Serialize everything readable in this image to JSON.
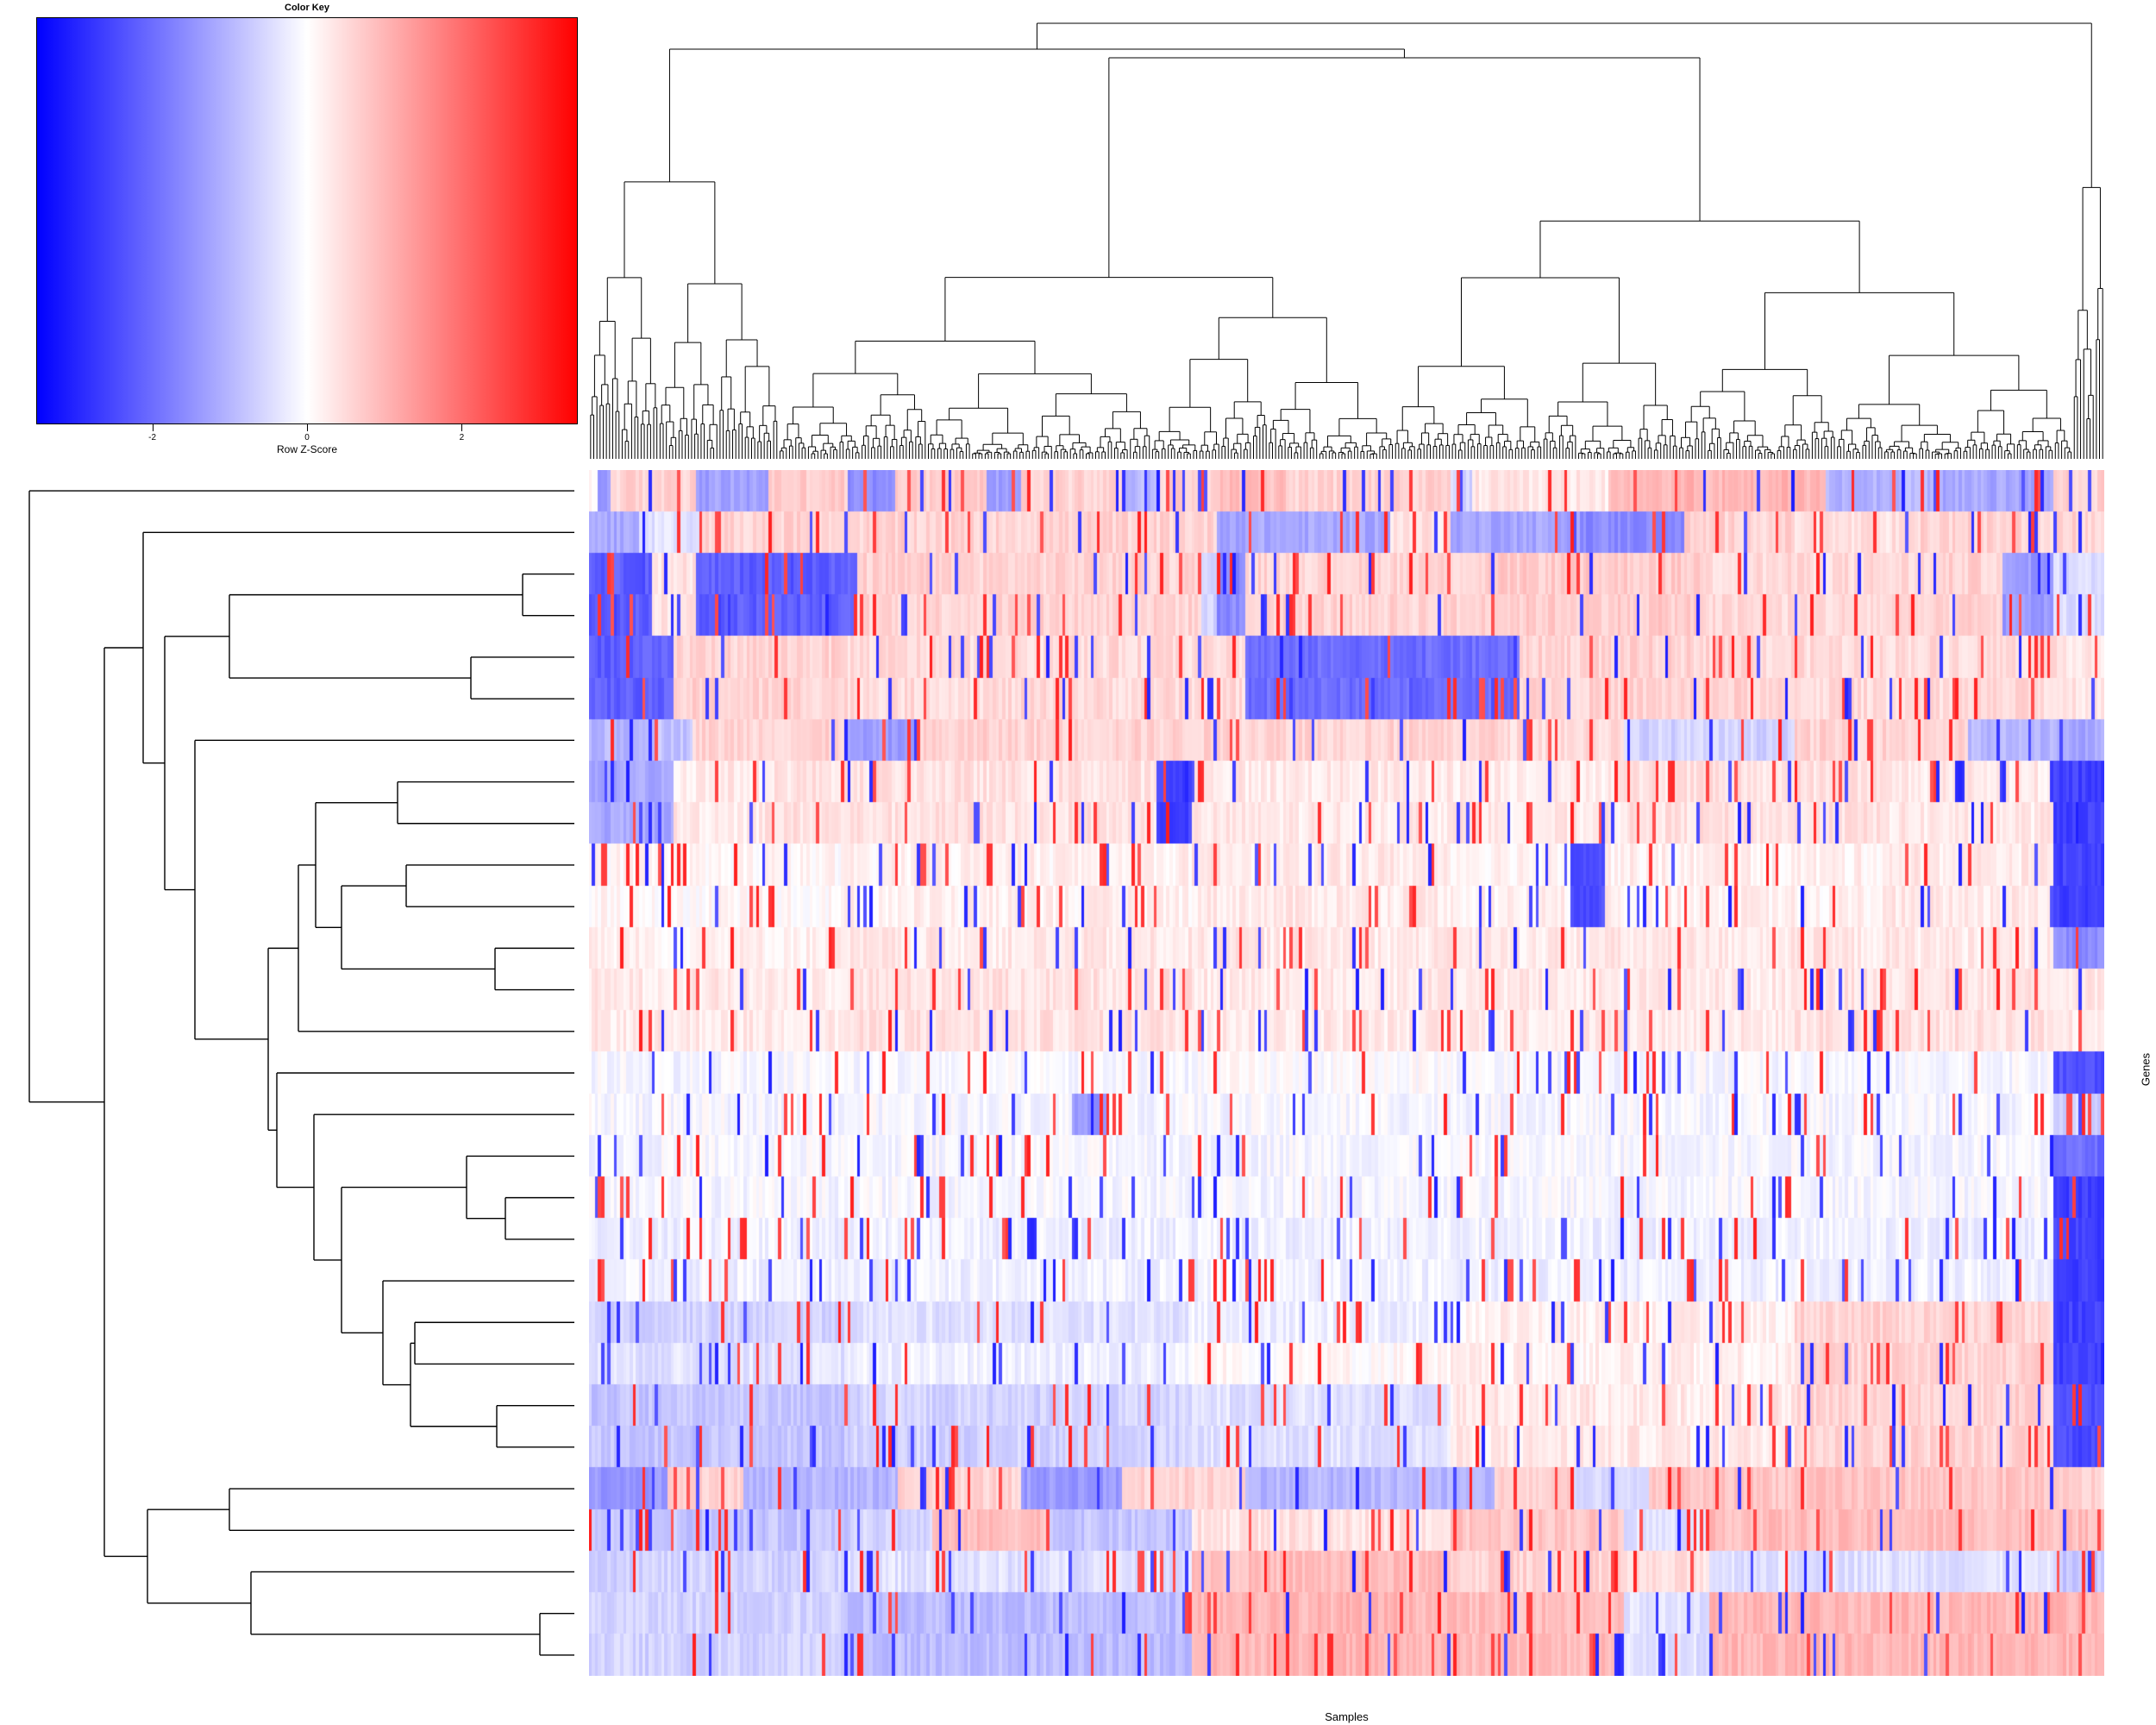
{
  "chart_data": {
    "type": "heatmap",
    "title": "",
    "color_key": {
      "title": "Color Key",
      "axis_label": "Row Z-Score",
      "range": [
        -3.5,
        3.5
      ],
      "ticks": [
        -2,
        0,
        2
      ],
      "tick_labels": [
        "-2",
        "0",
        "2"
      ],
      "colors": {
        "low": "#0000ff",
        "mid": "#ffffff",
        "high": "#ff0000"
      }
    },
    "xlabel": "Samples",
    "ylabel": "Genes",
    "n_rows": 29,
    "n_cols": 480,
    "row_dendrogram_order": [
      0,
      1,
      2,
      3,
      4,
      5,
      6,
      7,
      8,
      9,
      10,
      11,
      12,
      13,
      14,
      15,
      16,
      17,
      18,
      19,
      20,
      21,
      22,
      23,
      24,
      25,
      26,
      27,
      28
    ],
    "row_bands": [
      [
        [
          0,
          0.0
        ],
        [
          12,
          -1.4
        ],
        [
          25,
          0.6
        ],
        [
          60,
          0.6
        ],
        [
          125,
          -1.3
        ],
        [
          208,
          0.7
        ],
        [
          300,
          -1.6
        ],
        [
          355,
          0.7
        ],
        [
          462,
          -1.3
        ],
        [
          500,
          0.6
        ],
        [
          573,
          0.6
        ],
        [
          622,
          -0.9
        ],
        [
          660,
          0.6
        ],
        [
          720,
          0.9
        ],
        [
          810,
          0.6
        ],
        [
          1000,
          -0.6
        ],
        [
          1025,
          0.3
        ],
        [
          1183,
          1.0
        ],
        [
          1435,
          -1.0
        ],
        [
          1555,
          -1.2
        ],
        [
          1700,
          0.6
        ]
      ],
      [
        [
          0,
          -1.2
        ],
        [
          60,
          -0.4
        ],
        [
          130,
          0.6
        ],
        [
          415,
          0.6
        ],
        [
          730,
          -1.2
        ],
        [
          930,
          0.4
        ],
        [
          1000,
          -1.2
        ],
        [
          1150,
          -1.6
        ],
        [
          1270,
          0.6
        ],
        [
          1400,
          0.4
        ],
        [
          1545,
          0.6
        ],
        [
          1640,
          0.6
        ],
        [
          1700,
          0.6
        ]
      ],
      [
        [
          0,
          -2.2
        ],
        [
          75,
          0.4
        ],
        [
          125,
          -2.2
        ],
        [
          310,
          0.6
        ],
        [
          710,
          -0.6
        ],
        [
          730,
          -1.6
        ],
        [
          760,
          0.6
        ],
        [
          1040,
          0.7
        ],
        [
          1300,
          0.5
        ],
        [
          1570,
          0.6
        ],
        [
          1640,
          -1.4
        ],
        [
          1700,
          -0.5
        ]
      ],
      [
        [
          0,
          -2.2
        ],
        [
          75,
          0.4
        ],
        [
          125,
          -2.2
        ],
        [
          310,
          0.6
        ],
        [
          710,
          -0.6
        ],
        [
          730,
          -1.6
        ],
        [
          760,
          0.6
        ],
        [
          1040,
          0.7
        ],
        [
          1300,
          0.5
        ],
        [
          1570,
          0.6
        ],
        [
          1640,
          -1.4
        ],
        [
          1700,
          -0.5
        ]
      ],
      [
        [
          0,
          -2.2
        ],
        [
          100,
          0.6
        ],
        [
          300,
          0.5
        ],
        [
          700,
          0.5
        ],
        [
          760,
          -2.0
        ],
        [
          940,
          -2.0
        ],
        [
          1000,
          -2.0
        ],
        [
          1080,
          0.6
        ],
        [
          1360,
          0.5
        ],
        [
          1620,
          0.5
        ],
        [
          1690,
          0.4
        ]
      ],
      [
        [
          0,
          -2.2
        ],
        [
          100,
          0.6
        ],
        [
          300,
          0.5
        ],
        [
          700,
          0.5
        ],
        [
          760,
          -2.0
        ],
        [
          940,
          -2.0
        ],
        [
          1000,
          -2.0
        ],
        [
          1080,
          0.6
        ],
        [
          1360,
          0.5
        ],
        [
          1620,
          0.5
        ],
        [
          1690,
          0.4
        ]
      ],
      [
        [
          0,
          -1.0
        ],
        [
          60,
          -0.8
        ],
        [
          120,
          0.6
        ],
        [
          300,
          -1.4
        ],
        [
          380,
          0.6
        ],
        [
          730,
          0.6
        ],
        [
          1060,
          0.5
        ],
        [
          1200,
          -0.6
        ],
        [
          1400,
          0.6
        ],
        [
          1600,
          -1.0
        ],
        [
          1700,
          -1.2
        ]
      ],
      [
        [
          0,
          -1.2
        ],
        [
          100,
          0.3
        ],
        [
          200,
          0.4
        ],
        [
          660,
          -2.6
        ],
        [
          700,
          0.3
        ],
        [
          950,
          0.3
        ],
        [
          1200,
          0.4
        ],
        [
          1500,
          0.3
        ],
        [
          1700,
          -2.6
        ]
      ],
      [
        [
          0,
          -1.2
        ],
        [
          100,
          0.3
        ],
        [
          200,
          0.4
        ],
        [
          660,
          -2.6
        ],
        [
          700,
          0.3
        ],
        [
          950,
          0.3
        ],
        [
          1200,
          0.4
        ],
        [
          1500,
          0.3
        ],
        [
          1700,
          -2.6
        ]
      ],
      [
        [
          0,
          0.1
        ],
        [
          300,
          0.2
        ],
        [
          700,
          0.3
        ],
        [
          1000,
          0.2
        ],
        [
          1140,
          -2.4
        ],
        [
          1180,
          0.2
        ],
        [
          1500,
          0.3
        ],
        [
          1700,
          -2.6
        ]
      ],
      [
        [
          0,
          0.1
        ],
        [
          300,
          0.2
        ],
        [
          700,
          0.3
        ],
        [
          1000,
          0.2
        ],
        [
          1140,
          -2.4
        ],
        [
          1180,
          0.2
        ],
        [
          1500,
          0.3
        ],
        [
          1700,
          -2.6
        ]
      ],
      [
        [
          0,
          0.2
        ],
        [
          300,
          0.3
        ],
        [
          700,
          0.3
        ],
        [
          1000,
          0.3
        ],
        [
          1400,
          0.3
        ],
        [
          1700,
          -1.6
        ]
      ],
      [
        [
          0,
          0.3
        ],
        [
          300,
          0.4
        ],
        [
          700,
          0.3
        ],
        [
          1000,
          0.3
        ],
        [
          1400,
          0.4
        ],
        [
          1700,
          0.3
        ]
      ],
      [
        [
          0,
          0.3
        ],
        [
          300,
          0.4
        ],
        [
          700,
          0.3
        ],
        [
          1000,
          0.3
        ],
        [
          1400,
          0.4
        ],
        [
          1700,
          0.3
        ]
      ],
      [
        [
          0,
          -0.1
        ],
        [
          300,
          -0.1
        ],
        [
          700,
          0.0
        ],
        [
          1000,
          -0.1
        ],
        [
          1400,
          -0.1
        ],
        [
          1700,
          -2.4
        ]
      ],
      [
        [
          0,
          -0.1
        ],
        [
          300,
          -0.1
        ],
        [
          560,
          -1.4
        ],
        [
          600,
          -0.1
        ],
        [
          1000,
          -0.1
        ],
        [
          1400,
          -0.1
        ],
        [
          1700,
          -0.6
        ]
      ],
      [
        [
          0,
          -0.1
        ],
        [
          300,
          -0.1
        ],
        [
          600,
          -0.1
        ],
        [
          1000,
          -0.1
        ],
        [
          1400,
          -0.1
        ],
        [
          1700,
          -2.0
        ]
      ],
      [
        [
          0,
          -0.1
        ],
        [
          300,
          -0.1
        ],
        [
          700,
          -0.1
        ],
        [
          1000,
          -0.1
        ],
        [
          1400,
          -0.1
        ],
        [
          1700,
          -2.6
        ]
      ],
      [
        [
          0,
          -0.2
        ],
        [
          300,
          -0.2
        ],
        [
          700,
          -0.2
        ],
        [
          1000,
          -0.2
        ],
        [
          1400,
          -0.2
        ],
        [
          1700,
          -2.6
        ]
      ],
      [
        [
          0,
          -0.2
        ],
        [
          300,
          -0.2
        ],
        [
          700,
          -0.2
        ],
        [
          1000,
          -0.2
        ],
        [
          1400,
          -0.2
        ],
        [
          1700,
          -2.6
        ]
      ],
      [
        [
          0,
          -0.6
        ],
        [
          300,
          -0.4
        ],
        [
          700,
          -0.2
        ],
        [
          1000,
          0.2
        ],
        [
          1400,
          0.6
        ],
        [
          1700,
          -2.6
        ]
      ],
      [
        [
          0,
          -0.4
        ],
        [
          300,
          -0.2
        ],
        [
          700,
          0.1
        ],
        [
          1000,
          0.2
        ],
        [
          1400,
          0.6
        ],
        [
          1700,
          -2.6
        ]
      ],
      [
        [
          0,
          -0.8
        ],
        [
          300,
          -0.6
        ],
        [
          700,
          -0.4
        ],
        [
          1000,
          0.3
        ],
        [
          1400,
          0.6
        ],
        [
          1700,
          -2.4
        ]
      ],
      [
        [
          0,
          -0.8
        ],
        [
          300,
          -0.6
        ],
        [
          700,
          -0.4
        ],
        [
          1000,
          0.3
        ],
        [
          1400,
          0.6
        ],
        [
          1700,
          -2.4
        ]
      ],
      [
        [
          0,
          -1.4
        ],
        [
          90,
          0.6
        ],
        [
          180,
          -1.0
        ],
        [
          360,
          0.6
        ],
        [
          500,
          -1.4
        ],
        [
          620,
          0.6
        ],
        [
          760,
          -1.0
        ],
        [
          1050,
          0.6
        ],
        [
          1140,
          -0.6
        ],
        [
          1230,
          0.8
        ],
        [
          1700,
          0.6
        ]
      ],
      [
        [
          0,
          -0.8
        ],
        [
          300,
          -0.6
        ],
        [
          400,
          0.9
        ],
        [
          530,
          -0.8
        ],
        [
          700,
          0.4
        ],
        [
          1000,
          0.8
        ],
        [
          1200,
          -0.4
        ],
        [
          1300,
          0.9
        ],
        [
          1700,
          0.9
        ]
      ],
      [
        [
          0,
          -0.6
        ],
        [
          300,
          -0.4
        ],
        [
          700,
          0.9
        ],
        [
          1000,
          0.6
        ],
        [
          1200,
          0.4
        ],
        [
          1300,
          -0.4
        ],
        [
          1700,
          -0.8
        ]
      ],
      [
        [
          0,
          -0.6
        ],
        [
          300,
          -0.9
        ],
        [
          700,
          1.0
        ],
        [
          1000,
          0.9
        ],
        [
          1200,
          -0.4
        ],
        [
          1300,
          1.0
        ],
        [
          1700,
          1.0
        ]
      ],
      [
        [
          0,
          -0.6
        ],
        [
          300,
          -0.9
        ],
        [
          700,
          1.0
        ],
        [
          1000,
          0.9
        ],
        [
          1200,
          -0.4
        ],
        [
          1300,
          1.0
        ],
        [
          1700,
          1.0
        ]
      ]
    ]
  }
}
